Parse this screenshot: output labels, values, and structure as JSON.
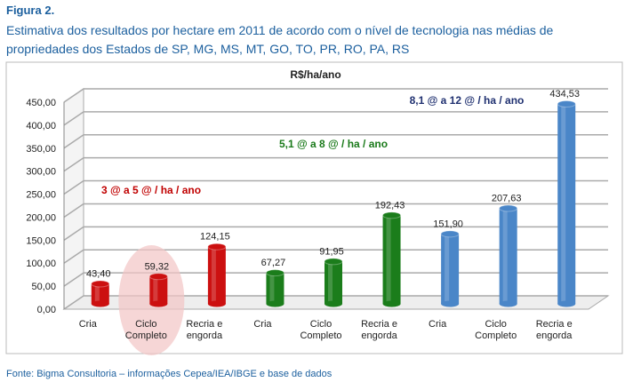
{
  "figure_label": "Figura 2.",
  "caption": "Estimativa dos resultados por hectare em 2011 de acordo com o nível de tecnologia nas médias de propriedades dos Estados de SP, MG, MS, MT, GO, TO, PR, RO, PA, RS",
  "source": "Fonte: Bigma Consultoria – informações Cepea/IEA/IBGE e base de dados",
  "chart_data": {
    "type": "bar",
    "title": "R$/ha/ano",
    "categories": [
      [
        "Cria"
      ],
      [
        "Ciclo",
        "Completo"
      ],
      [
        "Recria e",
        "engorda"
      ],
      [
        "Cria"
      ],
      [
        "Ciclo",
        "Completo"
      ],
      [
        "Recria e",
        "engorda"
      ],
      [
        "Cria"
      ],
      [
        "Ciclo",
        "Completo"
      ],
      [
        "Recria e",
        "engorda"
      ]
    ],
    "values": [
      43.4,
      59.32,
      124.15,
      67.27,
      91.95,
      192.43,
      151.9,
      207.63,
      434.53
    ],
    "value_labels": [
      "43,40",
      "59,32",
      "124,15",
      "67,27",
      "91,95",
      "192,43",
      "151,90",
      "207,63",
      "434,53"
    ],
    "groups": [
      {
        "label": "3 @ a 5 @ / ha / ano",
        "color": "#c00000"
      },
      {
        "label": "5,1 @ a 8 @ / ha / ano",
        "color": "#1a7a1a"
      },
      {
        "label": "8,1 @ a 12 @ / ha / ano",
        "color": "#1f3070"
      }
    ],
    "bar_colors": [
      "#cc1010",
      "#cc1010",
      "#cc1010",
      "#1b7d1b",
      "#1b7d1b",
      "#1b7d1b",
      "#4a86c8",
      "#4a86c8",
      "#4a86c8"
    ],
    "highlighted_category_index": 1,
    "yticks": [
      "0,00",
      "50,00",
      "100,00",
      "150,00",
      "200,00",
      "250,00",
      "300,00",
      "350,00",
      "400,00",
      "450,00"
    ],
    "ylim": [
      0,
      450
    ],
    "grid": true
  }
}
